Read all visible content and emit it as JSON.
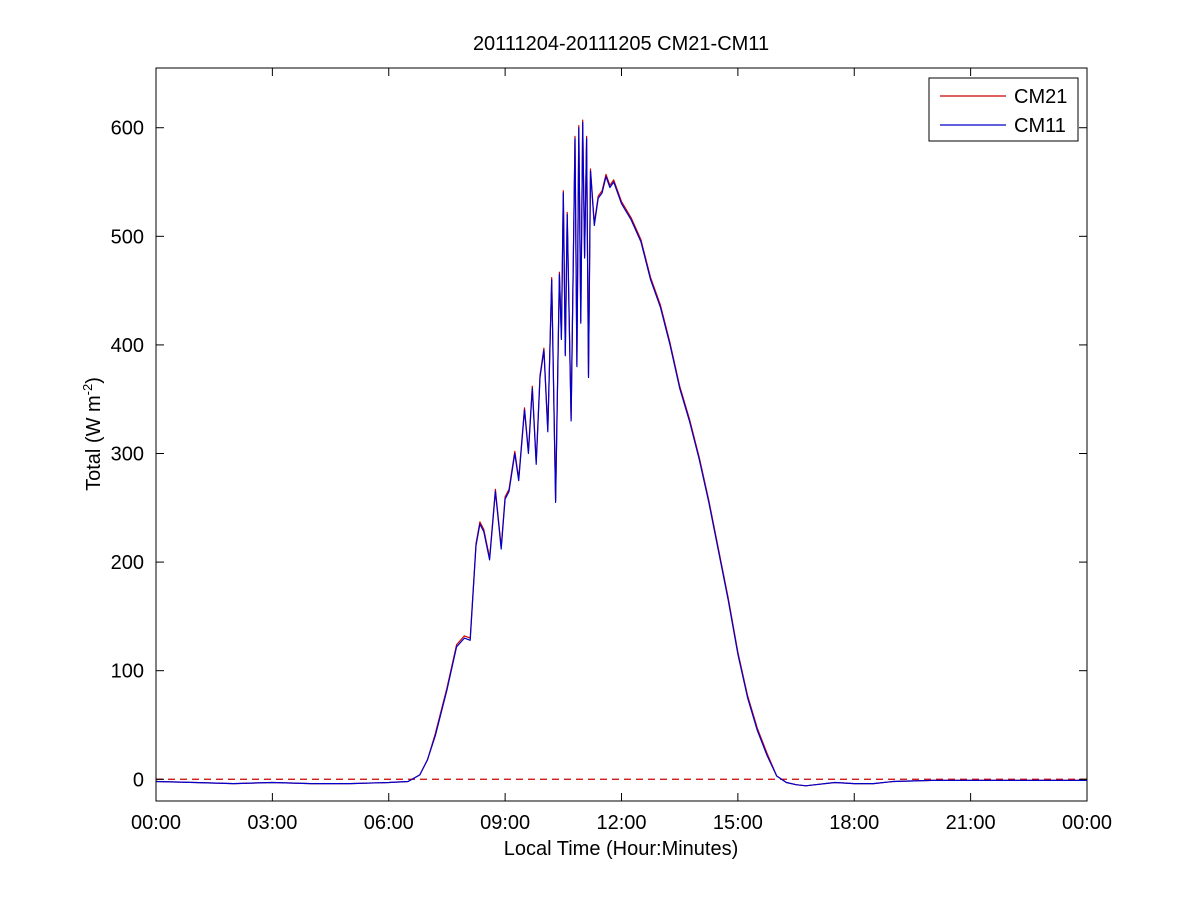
{
  "chart_data": {
    "type": "line",
    "title": "20111204-20111205 CM21-CM11",
    "xlabel": "Local Time (Hour:Minutes)",
    "ylabel_main": "Total (W m",
    "ylabel_sup": "-2",
    "ylabel_close": ")",
    "xlim_hours": [
      0,
      24
    ],
    "ylim": [
      -20,
      655
    ],
    "x_ticks": [
      {
        "hours": 0,
        "label": "00:00"
      },
      {
        "hours": 3,
        "label": "03:00"
      },
      {
        "hours": 6,
        "label": "06:00"
      },
      {
        "hours": 9,
        "label": "09:00"
      },
      {
        "hours": 12,
        "label": "12:00"
      },
      {
        "hours": 15,
        "label": "15:00"
      },
      {
        "hours": 18,
        "label": "18:00"
      },
      {
        "hours": 21,
        "label": "21:00"
      },
      {
        "hours": 24,
        "label": "00:00"
      }
    ],
    "y_ticks": [
      0,
      100,
      200,
      300,
      400,
      500,
      600
    ],
    "grid": false,
    "legend_position": "top-right",
    "reference_line": {
      "y": 0,
      "style": "dashed",
      "color": "#cc0000"
    },
    "series": [
      {
        "name": "CM21",
        "color": "#cc0000",
        "offset": 2
      },
      {
        "name": "CM11",
        "color": "#0000cc",
        "offset": 0
      }
    ],
    "x_hours": [
      0,
      1,
      2,
      3,
      4,
      5,
      6,
      6.5,
      6.8,
      7,
      7.2,
      7.5,
      7.75,
      7.95,
      8.1,
      8.25,
      8.35,
      8.45,
      8.6,
      8.75,
      8.9,
      9.0,
      9.1,
      9.25,
      9.35,
      9.5,
      9.6,
      9.7,
      9.8,
      9.9,
      10.0,
      10.1,
      10.2,
      10.3,
      10.4,
      10.45,
      10.5,
      10.55,
      10.6,
      10.7,
      10.8,
      10.85,
      10.9,
      10.95,
      11.0,
      11.05,
      11.1,
      11.15,
      11.2,
      11.3,
      11.4,
      11.5,
      11.6,
      11.7,
      11.8,
      12.0,
      12.25,
      12.5,
      12.75,
      13.0,
      13.25,
      13.5,
      13.75,
      14.0,
      14.25,
      14.5,
      14.75,
      15.0,
      15.25,
      15.5,
      15.75,
      16.0,
      16.25,
      16.5,
      16.75,
      17.0,
      17.5,
      18.0,
      18.5,
      19.0,
      20.0,
      21.0,
      22.0,
      23.0,
      24.0
    ],
    "y_values": [
      -2,
      -3,
      -4,
      -3,
      -4,
      -4,
      -3,
      -2,
      4,
      18,
      40,
      82,
      122,
      130,
      128,
      215,
      235,
      228,
      202,
      265,
      212,
      258,
      265,
      300,
      275,
      340,
      300,
      360,
      290,
      370,
      395,
      320,
      460,
      255,
      465,
      405,
      540,
      390,
      520,
      330,
      590,
      380,
      600,
      420,
      605,
      480,
      590,
      370,
      560,
      510,
      535,
      540,
      555,
      545,
      550,
      530,
      515,
      495,
      460,
      435,
      400,
      360,
      330,
      295,
      255,
      210,
      165,
      115,
      75,
      45,
      22,
      3,
      -3,
      -5,
      -6,
      -5,
      -3,
      -4,
      -4,
      -2,
      -1,
      -1,
      -1,
      -1,
      -1
    ]
  }
}
